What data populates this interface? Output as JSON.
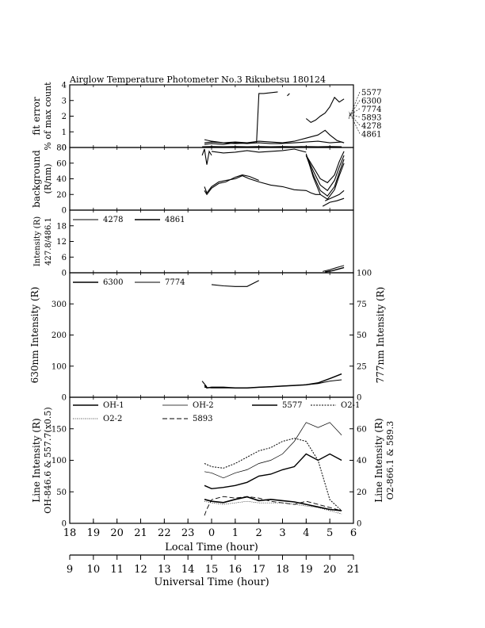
{
  "title": "Airglow Temperature Photometer No.3   Rikubetsu     180124",
  "chart_data": [
    {
      "type": "line",
      "ylabel": "fit error",
      "ylabel2": "% of max count",
      "ylim": [
        0,
        4
      ],
      "yticks": [
        "0",
        "1",
        "2",
        "3",
        "4"
      ],
      "side_legend": [
        "5577",
        "6300",
        "7774",
        "5893",
        "4278",
        "4861"
      ],
      "series": [
        {
          "x": [
            23.7,
            24.0,
            24.5,
            25.0,
            25.5,
            26.0,
            26.5,
            26.9,
            27.5,
            28.0,
            28.5,
            29.0,
            29.5,
            29.6
          ],
          "y": [
            0.3,
            0.35,
            0.3,
            0.25,
            0.28,
            0.3,
            0.25,
            0.25,
            0.3,
            0.35,
            0.4,
            0.3,
            0.35,
            0.3
          ]
        },
        {
          "x": [
            23.7,
            24.0,
            24.5,
            25.0,
            25.5,
            26.0,
            26.5,
            27.0,
            27.5,
            28.0,
            28.5,
            28.8,
            29.0,
            29.3,
            29.6
          ],
          "y": [
            0.5,
            0.4,
            0.3,
            0.35,
            0.3,
            0.4,
            0.35,
            0.3,
            0.4,
            0.6,
            0.8,
            1.1,
            0.8,
            0.45,
            0.3
          ]
        },
        {
          "x": [
            23.7,
            24.0,
            24.5,
            25.0,
            25.5,
            25.9
          ],
          "y": [
            0.2,
            0.25,
            0.2,
            0.3,
            0.25,
            0.3
          ]
        },
        {
          "x": [
            25.9,
            26.0,
            26.2,
            26.5,
            26.8
          ],
          "y": [
            0.3,
            3.45,
            3.45,
            3.5,
            3.55
          ]
        },
        {
          "x": [
            27.2,
            27.3
          ],
          "y": [
            3.3,
            3.45
          ]
        },
        {
          "x": [
            28.0,
            28.2,
            28.4,
            28.6,
            28.8,
            29.0,
            29.2,
            29.4,
            29.6
          ],
          "y": [
            1.85,
            1.6,
            1.75,
            2.0,
            2.2,
            2.6,
            3.2,
            2.9,
            3.1
          ]
        },
        {
          "x": [
            23.6,
            24.0,
            24.5,
            25.0,
            25.5,
            26.0,
            26.5,
            27.0,
            27.5,
            28.0,
            28.5,
            29.0,
            29.5
          ],
          "y": [
            0.05,
            0.06,
            0.05,
            0.06,
            0.05,
            0.06,
            0.05,
            0.06,
            0.05,
            0.06,
            0.05,
            0.06,
            0.05
          ]
        }
      ]
    },
    {
      "type": "line",
      "ylabel": "background",
      "ylabel2": "(R/nm)",
      "ylim": [
        0,
        80
      ],
      "yticks": [
        "0",
        "20",
        "40",
        "60",
        "80"
      ],
      "series": [
        {
          "x": [
            23.7,
            23.8,
            24.0,
            24.3,
            24.6,
            25.0,
            25.3,
            25.6,
            26.0,
            26.5,
            27.0,
            27.5,
            28.0,
            28.2,
            28.4,
            28.6
          ],
          "y": [
            30,
            22,
            30,
            36,
            38,
            40,
            44,
            40,
            36,
            32,
            30,
            26,
            25,
            22,
            20,
            20
          ]
        },
        {
          "x": [
            23.7,
            23.8,
            24.0,
            24.3,
            24.6,
            25.0,
            25.3,
            25.6,
            26.0
          ],
          "y": [
            25,
            20,
            28,
            34,
            36,
            42,
            45,
            43,
            38
          ]
        },
        {
          "x": [
            28.7,
            29.0,
            29.3,
            29.6
          ],
          "y": [
            5,
            10,
            12,
            15
          ]
        },
        {
          "x": [
            28.8,
            29.1,
            29.4,
            29.6
          ],
          "y": [
            12,
            16,
            20,
            25
          ]
        },
        {
          "x": [
            28.0,
            28.3,
            28.6,
            28.9,
            29.2,
            29.4,
            29.6
          ],
          "y": [
            70,
            55,
            40,
            35,
            45,
            62,
            75
          ]
        },
        {
          "x": [
            28.0,
            28.3,
            28.6,
            28.9,
            29.2,
            29.4,
            29.6
          ],
          "y": [
            70,
            50,
            32,
            25,
            38,
            55,
            70
          ]
        },
        {
          "x": [
            28.0,
            28.3,
            28.6,
            28.9,
            29.2,
            29.4,
            29.6
          ],
          "y": [
            70,
            45,
            25,
            18,
            30,
            48,
            65
          ]
        },
        {
          "x": [
            28.0,
            28.3,
            28.6,
            28.9,
            29.2,
            29.4,
            29.6
          ],
          "y": [
            72,
            42,
            20,
            14,
            26,
            44,
            60
          ]
        },
        {
          "x": [
            23.6,
            23.7,
            23.8,
            23.9,
            24.0
          ],
          "y": [
            70,
            78,
            58,
            75,
            70
          ]
        },
        {
          "x": [
            24.0,
            24.5,
            25.0,
            25.5,
            26.0,
            26.5,
            27.0,
            27.5,
            28.0
          ],
          "y": [
            75,
            73,
            74,
            76,
            74,
            75,
            76,
            78,
            74
          ]
        }
      ]
    },
    {
      "type": "line",
      "ylabel": "Intensity (R)",
      "ylabel2": "427.8/486.1",
      "ylim": [
        0,
        24
      ],
      "yticks": [
        "0",
        "6",
        "12",
        "18"
      ],
      "series": [
        {
          "name": "4278",
          "x": [
            28.7,
            29.0,
            29.3,
            29.6
          ],
          "y": [
            0.5,
            1.2,
            2.0,
            2.8
          ]
        },
        {
          "name": "4861",
          "x": [
            28.8,
            29.1,
            29.4,
            29.6
          ],
          "y": [
            0.3,
            0.8,
            1.5,
            2.0
          ]
        }
      ]
    },
    {
      "type": "line",
      "ylabel": "630nm Intensity (R)",
      "y2label": "777nm Intensity (R)",
      "ylim": [
        0,
        400
      ],
      "yticks": [
        "0",
        "100",
        "200",
        "300"
      ],
      "y2lim": [
        0,
        100
      ],
      "y2ticks": [
        "0",
        "25",
        "50",
        "75",
        "100"
      ],
      "series": [
        {
          "name": "6300",
          "x": [
            23.7,
            23.8,
            24.0,
            24.5,
            25.0,
            25.5,
            26.0,
            26.5,
            27.0,
            27.5,
            28.0,
            28.5,
            29.0,
            29.5
          ],
          "y": [
            38,
            30,
            32,
            32,
            30,
            30,
            32,
            34,
            36,
            38,
            40,
            46,
            60,
            75
          ]
        },
        {
          "name": "7774",
          "x": [
            23.7,
            24.0,
            24.5,
            25.0,
            25.5,
            26.0,
            26.5,
            27.0,
            27.5,
            28.0,
            28.5,
            29.0,
            29.5
          ],
          "y": [
            8,
            7.5,
            7.5,
            7.5,
            7.5,
            8,
            8.5,
            9,
            9.5,
            10,
            11,
            13,
            14
          ]
        },
        {
          "x": [
            24.0,
            24.5,
            25.0,
            25.5,
            26.0
          ],
          "y": [
            362,
            358,
            356,
            356,
            375
          ]
        },
        {
          "x": [
            23.6,
            23.8
          ],
          "y": [
            52,
            33
          ]
        }
      ]
    },
    {
      "type": "line",
      "ylabel": "Line Intensity (R)",
      "ylabel2": "OH-846.6 & 557.7(x0.5)",
      "y2label": "Line Intensity (R)",
      "y2label2": "O2-866.1 & 589.3",
      "ylim": [
        0,
        200
      ],
      "yticks": [
        "0",
        "50",
        "100",
        "150"
      ],
      "y2lim": [
        0,
        80
      ],
      "y2ticks": [
        "0",
        "20",
        "40",
        "60"
      ],
      "xlim": [
        18,
        30
      ],
      "xticks": [
        "18",
        "19",
        "20",
        "21",
        "22",
        "23",
        "0",
        "1",
        "2",
        "3",
        "4",
        "5",
        "6"
      ],
      "xlabel": "Local Time (hour)",
      "ut_ticks": [
        "9",
        "10",
        "11",
        "12",
        "13",
        "14",
        "15",
        "16",
        "17",
        "18",
        "19",
        "20",
        "21"
      ],
      "ut_label": "Universal Time (hour)",
      "series": [
        {
          "name": "OH-1",
          "x": [
            23.7,
            24.0,
            24.5,
            25.0,
            25.5,
            26.0,
            26.5,
            27.0,
            27.5,
            28.0,
            28.5,
            29.0,
            29.5
          ],
          "y": [
            60,
            55,
            57,
            60,
            65,
            75,
            78,
            85,
            90,
            110,
            100,
            110,
            100
          ]
        },
        {
          "name": "OH-2",
          "x": [
            23.7,
            24.0,
            24.5,
            25.0,
            25.5,
            26.0,
            26.5,
            27.0,
            27.5,
            28.0,
            28.5,
            29.0,
            29.5
          ],
          "y": [
            82,
            80,
            72,
            80,
            85,
            95,
            100,
            110,
            130,
            160,
            152,
            160,
            140
          ]
        },
        {
          "name": "5577",
          "x": [
            23.7,
            24.0,
            24.5,
            25.0,
            25.5,
            26.0,
            26.5,
            27.0,
            27.5,
            28.0,
            28.5,
            29.0,
            29.5
          ],
          "y": [
            38,
            35,
            33,
            38,
            42,
            36,
            38,
            36,
            34,
            30,
            26,
            22,
            20
          ]
        },
        {
          "name": "O2-1",
          "x": [
            23.7,
            24.0,
            24.5,
            25.0,
            25.5,
            26.0,
            26.5,
            27.0,
            27.5,
            28.0,
            28.5,
            29.0,
            29.5
          ],
          "y": [
            38,
            36,
            35,
            38,
            42,
            46,
            48,
            52,
            54,
            52,
            40,
            15,
            8
          ]
        },
        {
          "name": "O2-2",
          "x": [
            23.7,
            24.0,
            24.5,
            25.0,
            25.5,
            26.0,
            26.5,
            27.0,
            27.5,
            28.0,
            28.5,
            29.0,
            29.5
          ],
          "y": [
            14,
            13,
            12,
            13,
            14,
            13,
            13,
            13,
            12,
            11,
            10,
            8,
            6
          ]
        },
        {
          "name": "5893",
          "x": [
            23.7,
            23.8,
            24.0,
            24.5,
            25.0,
            25.5,
            26.0,
            26.5,
            27.0,
            27.5,
            28.0,
            28.5,
            29.0,
            29.5
          ],
          "y": [
            5,
            9,
            15,
            17,
            16,
            17,
            16,
            14,
            13,
            12,
            14,
            12,
            10,
            8
          ]
        }
      ]
    }
  ]
}
